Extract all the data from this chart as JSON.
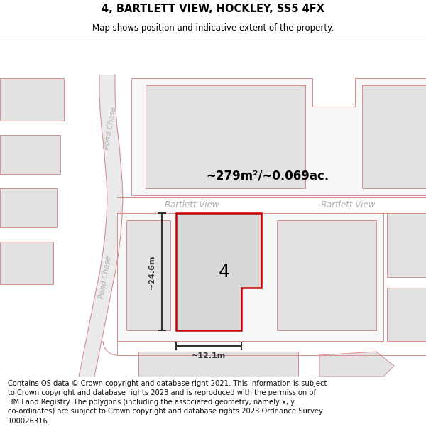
{
  "title": "4, BARTLETT VIEW, HOCKLEY, SS5 4FX",
  "subtitle": "Map shows position and indicative extent of the property.",
  "area_text": "~279m²/~0.069ac.",
  "label_number": "4",
  "dim_height": "~24.6m",
  "dim_width": "~12.1m",
  "road_label_1": "Bartlett View",
  "road_label_2": "Bartlett View",
  "road_label_left1": "Pond Chase",
  "road_label_left2": "Pond Chase",
  "footer": "Contains OS data © Crown copyright and database right 2021. This information is subject to Crown copyright and database rights 2023 and is reproduced with the permission of HM Land Registry. The polygons (including the associated geometry, namely x, y co-ordinates) are subject to Crown copyright and database rights 2023 Ordnance Survey 100026316.",
  "map_bg": "#f0f0f0",
  "building_color": "#e2e2e2",
  "road_line_color": "#d89090",
  "highlight_color": "#cc0000",
  "dim_color": "#333333",
  "road_text_color": "#b0b0b0",
  "footer_color": "#111111"
}
